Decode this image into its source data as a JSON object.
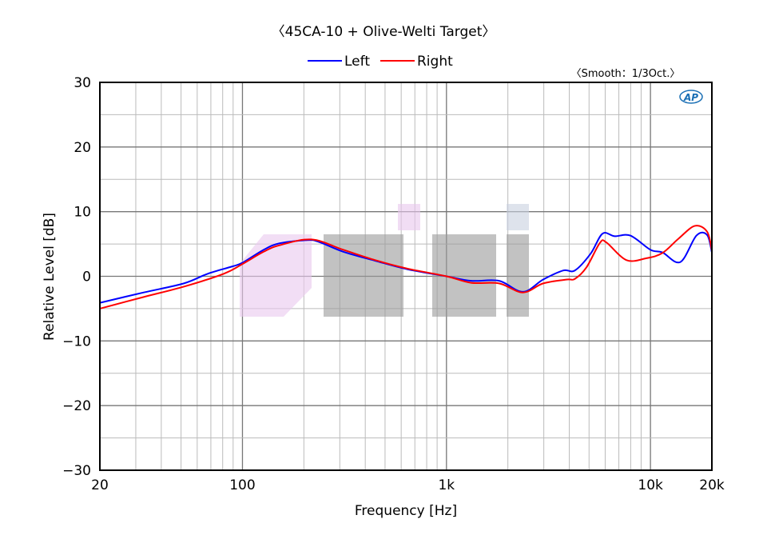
{
  "chart_data": {
    "type": "line",
    "title": "〈45CA-10 + Olive-Welti Target〉",
    "annotation": "〈Smooth：1/3Oct.〉",
    "logo": "AP",
    "xlabel": "Frequency [Hz]",
    "ylabel": "Relative Level [dB]",
    "xscale": "log",
    "xlim": [
      20,
      20000
    ],
    "ylim": [
      -30,
      30
    ],
    "xticks": [
      {
        "v": 20,
        "label": "20"
      },
      {
        "v": 100,
        "label": "100"
      },
      {
        "v": 1000,
        "label": "1k"
      },
      {
        "v": 10000,
        "label": "10k"
      },
      {
        "v": 20000,
        "label": "20k"
      }
    ],
    "yticks": [
      {
        "v": 30,
        "label": "30"
      },
      {
        "v": 20,
        "label": "20"
      },
      {
        "v": 10,
        "label": "10"
      },
      {
        "v": 0,
        "label": "0"
      },
      {
        "v": -10,
        "label": "−10"
      },
      {
        "v": -20,
        "label": "−20"
      },
      {
        "v": -30,
        "label": "−30"
      }
    ],
    "grid": true,
    "legend_position": "top-center",
    "series": [
      {
        "name": "Left",
        "color": "#0000ff",
        "x": [
          20,
          32.8,
          51.6,
          67.6,
          88.6,
          100,
          127,
          152,
          208,
          238,
          312,
          448,
          642,
          1000,
          1320,
          1810,
          2370,
          2980,
          3740,
          4260,
          5090,
          5820,
          6670,
          7970,
          10000,
          11440,
          14000,
          16800,
          18950,
          20000
        ],
        "y": [
          -4.1,
          -2.5,
          -1.1,
          0.4,
          1.5,
          2.1,
          4.1,
          5.1,
          5.6,
          5.3,
          3.8,
          2.4,
          1.1,
          0,
          -0.7,
          -0.7,
          -2.4,
          -0.5,
          0.9,
          0.9,
          3.5,
          6.6,
          6.2,
          6.3,
          4.1,
          3.7,
          2.2,
          6.3,
          6.4,
          3.7
        ]
      },
      {
        "name": "Right",
        "color": "#ff0000",
        "x": [
          20,
          32.8,
          51.6,
          81,
          100,
          127,
          152,
          218,
          312,
          448,
          642,
          1000,
          1320,
          1810,
          2370,
          2980,
          3900,
          4260,
          4860,
          5660,
          6100,
          7630,
          9560,
          11440,
          13700,
          16500,
          18950,
          20000
        ],
        "y": [
          -5,
          -3.2,
          -1.6,
          0.4,
          1.9,
          3.8,
          4.8,
          5.7,
          4.1,
          2.5,
          1.2,
          0,
          -1,
          -1.1,
          -2.5,
          -1.1,
          -0.5,
          -0.4,
          1.4,
          5.2,
          5.2,
          2.5,
          2.8,
          3.6,
          5.8,
          7.8,
          6.9,
          4
        ]
      }
    ]
  }
}
